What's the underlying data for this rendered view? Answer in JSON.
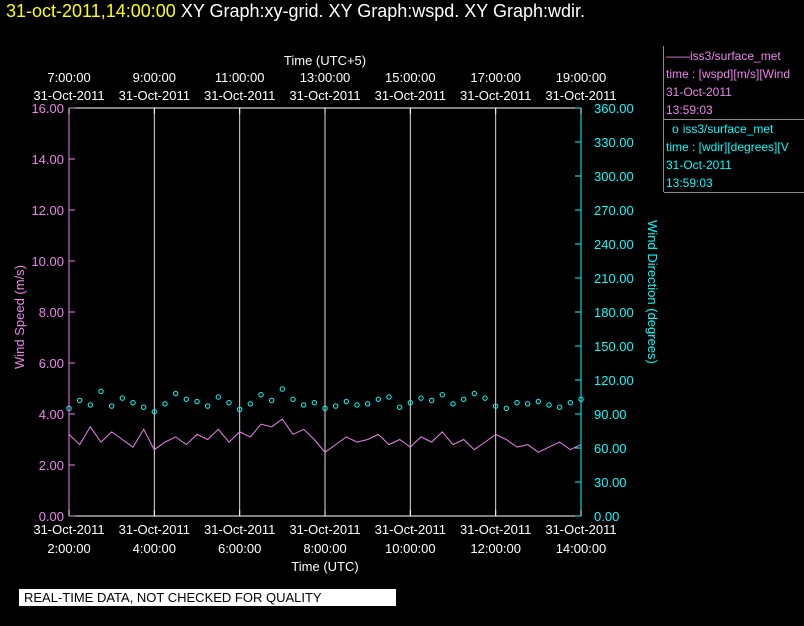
{
  "title": {
    "timestamp": "31-oct-2011,14:00:00",
    "graphs": "XY Graph:xy-grid.  XY Graph:wspd.  XY Graph:wdir."
  },
  "legend": [
    {
      "marker": "——",
      "source": "iss3/surface_met",
      "var": "time : [wspd][m/s][Wind",
      "date": "31-Oct-2011",
      "time": "13:59:03",
      "color": "#ee82ee"
    },
    {
      "marker": "o",
      "source": "iss3/surface_met",
      "var": "time : [wdir][degrees][V",
      "date": "31-Oct-2011",
      "time": "13:59:03",
      "color": "#00ffff"
    }
  ],
  "qc_banner": "REAL-TIME DATA, NOT CHECKED FOR QUALITY",
  "chart_data": {
    "type": "line",
    "top_axis": {
      "label": "Time (UTC+5)",
      "ticks": [
        {
          "date": "31-Oct-2011",
          "time": "7:00:00"
        },
        {
          "date": "31-Oct-2011",
          "time": "9:00:00"
        },
        {
          "date": "31-Oct-2011",
          "time": "11:00:00"
        },
        {
          "date": "31-Oct-2011",
          "time": "13:00:00"
        },
        {
          "date": "31-Oct-2011",
          "time": "15:00:00"
        },
        {
          "date": "31-Oct-2011",
          "time": "17:00:00"
        },
        {
          "date": "31-Oct-2011",
          "time": "19:00:00"
        }
      ]
    },
    "bottom_axis": {
      "label": "Time (UTC)",
      "range": [
        "2011-10-31T02:00:00",
        "2011-10-31T14:00:00"
      ],
      "ticks": [
        {
          "date": "31-Oct-2011",
          "time": "2:00:00"
        },
        {
          "date": "31-Oct-2011",
          "time": "4:00:00"
        },
        {
          "date": "31-Oct-2011",
          "time": "6:00:00"
        },
        {
          "date": "31-Oct-2011",
          "time": "8:00:00"
        },
        {
          "date": "31-Oct-2011",
          "time": "10:00:00"
        },
        {
          "date": "31-Oct-2011",
          "time": "12:00:00"
        },
        {
          "date": "31-Oct-2011",
          "time": "14:00:00"
        }
      ]
    },
    "left_axis": {
      "label": "Wind Speed (m/s)",
      "range": [
        0,
        16
      ],
      "ticks": [
        "0.00",
        "2.00",
        "4.00",
        "6.00",
        "8.00",
        "10.00",
        "12.00",
        "14.00",
        "16.00"
      ],
      "color": "#ee82ee"
    },
    "right_axis": {
      "label": "Wind Direction (degrees)",
      "range": [
        0,
        360
      ],
      "ticks": [
        "0.00",
        "30.00",
        "60.00",
        "90.00",
        "120.00",
        "150.00",
        "180.00",
        "210.00",
        "240.00",
        "270.00",
        "300.00",
        "330.00",
        "360.00"
      ],
      "color": "#00ffff"
    },
    "grid": "vertical",
    "series": [
      {
        "name": "iss3/surface_met wspd",
        "style": "line",
        "color": "#ee82ee",
        "axis": "left",
        "x_hours_utc": [
          2.0,
          2.25,
          2.5,
          2.75,
          3.0,
          3.25,
          3.5,
          3.75,
          4.0,
          4.25,
          4.5,
          4.75,
          5.0,
          5.25,
          5.5,
          5.75,
          6.0,
          6.25,
          6.5,
          6.75,
          7.0,
          7.25,
          7.5,
          7.75,
          8.0,
          8.25,
          8.5,
          8.75,
          9.0,
          9.25,
          9.5,
          9.75,
          10.0,
          10.25,
          10.5,
          10.75,
          11.0,
          11.25,
          11.5,
          11.75,
          12.0,
          12.25,
          12.5,
          12.75,
          13.0,
          13.25,
          13.5,
          13.75,
          14.0
        ],
        "values": [
          3.2,
          2.8,
          3.5,
          2.9,
          3.3,
          3.0,
          2.7,
          3.4,
          2.6,
          2.9,
          3.1,
          2.8,
          3.2,
          3.0,
          3.4,
          2.9,
          3.3,
          3.1,
          3.6,
          3.5,
          3.8,
          3.2,
          3.4,
          3.0,
          2.5,
          2.8,
          3.1,
          2.9,
          3.0,
          3.2,
          2.8,
          3.0,
          2.7,
          3.1,
          2.9,
          3.3,
          2.8,
          3.0,
          2.6,
          2.9,
          3.2,
          3.0,
          2.7,
          2.8,
          2.5,
          2.7,
          2.9,
          2.6,
          2.8
        ]
      },
      {
        "name": "iss3/surface_met wdir",
        "style": "markers",
        "color": "#00ffff",
        "axis": "right",
        "x_hours_utc": [
          2.0,
          2.25,
          2.5,
          2.75,
          3.0,
          3.25,
          3.5,
          3.75,
          4.0,
          4.25,
          4.5,
          4.75,
          5.0,
          5.25,
          5.5,
          5.75,
          6.0,
          6.25,
          6.5,
          6.75,
          7.0,
          7.25,
          7.5,
          7.75,
          8.0,
          8.25,
          8.5,
          8.75,
          9.0,
          9.25,
          9.5,
          9.75,
          10.0,
          10.25,
          10.5,
          10.75,
          11.0,
          11.25,
          11.5,
          11.75,
          12.0,
          12.25,
          12.5,
          12.75,
          13.0,
          13.25,
          13.5,
          13.75,
          14.0
        ],
        "values": [
          95,
          102,
          98,
          110,
          97,
          104,
          100,
          96,
          92,
          99,
          108,
          103,
          101,
          97,
          105,
          100,
          94,
          99,
          107,
          102,
          112,
          103,
          98,
          100,
          95,
          97,
          101,
          98,
          99,
          103,
          105,
          96,
          100,
          104,
          102,
          107,
          99,
          103,
          108,
          104,
          97,
          95,
          100,
          99,
          101,
          98,
          96,
          100,
          103
        ]
      }
    ]
  }
}
